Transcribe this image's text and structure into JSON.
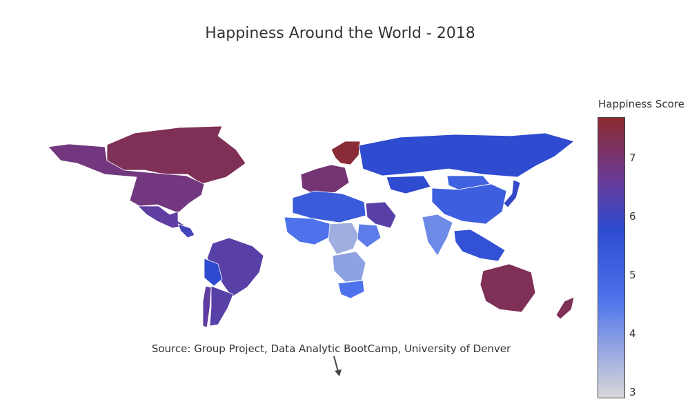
{
  "title": "Happiness Around the World - 2018",
  "source_annotation": "Source: Group Project, Data Analytic BootCamp, University of Denver",
  "colorbar": {
    "title": "Happiness Score",
    "range": [
      2.9,
      7.7
    ],
    "ticks": [
      "3",
      "4",
      "5",
      "6",
      "7"
    ],
    "colorscale": [
      [
        0.0,
        "#d8d8d8"
      ],
      [
        0.35,
        "#4e73ec"
      ],
      [
        0.6,
        "#2e4bd0"
      ],
      [
        0.78,
        "#6a3b97"
      ],
      [
        1.0,
        "#8c2a2e"
      ]
    ]
  },
  "chart_data": {
    "type": "choropleth",
    "title": "Happiness Around the World - 2018",
    "colorbar_title": "Happiness Score",
    "range": [
      2.9,
      7.7
    ],
    "regions": [
      {
        "region": "Canada",
        "value": 7.3
      },
      {
        "region": "United States",
        "value": 6.9
      },
      {
        "region": "Mexico",
        "value": 6.5
      },
      {
        "region": "Central America",
        "value": 6.1
      },
      {
        "region": "Brazil",
        "value": 6.4
      },
      {
        "region": "Argentina",
        "value": 6.4
      },
      {
        "region": "Chile",
        "value": 6.5
      },
      {
        "region": "Bolivia",
        "value": 5.8
      },
      {
        "region": "Nordic countries",
        "value": 7.6
      },
      {
        "region": "Western Europe",
        "value": 7.0
      },
      {
        "region": "Russia",
        "value": 5.8
      },
      {
        "region": "Kazakhstan",
        "value": 5.8
      },
      {
        "region": "China",
        "value": 5.2
      },
      {
        "region": "Mongolia",
        "value": 5.1
      },
      {
        "region": "India",
        "value": 4.2
      },
      {
        "region": "Saudi Arabia",
        "value": 6.4
      },
      {
        "region": "North Africa",
        "value": 5.3
      },
      {
        "region": "West Africa",
        "value": 4.6
      },
      {
        "region": "Central Africa",
        "value": 3.6
      },
      {
        "region": "Ethiopia",
        "value": 4.4
      },
      {
        "region": "South Africa",
        "value": 4.6
      },
      {
        "region": "Southern Africa",
        "value": 3.8
      },
      {
        "region": "Japan",
        "value": 5.9
      },
      {
        "region": "Southeast Asia",
        "value": 5.6
      },
      {
        "region": "Australia",
        "value": 7.3
      },
      {
        "region": "New Zealand",
        "value": 7.3
      }
    ]
  }
}
